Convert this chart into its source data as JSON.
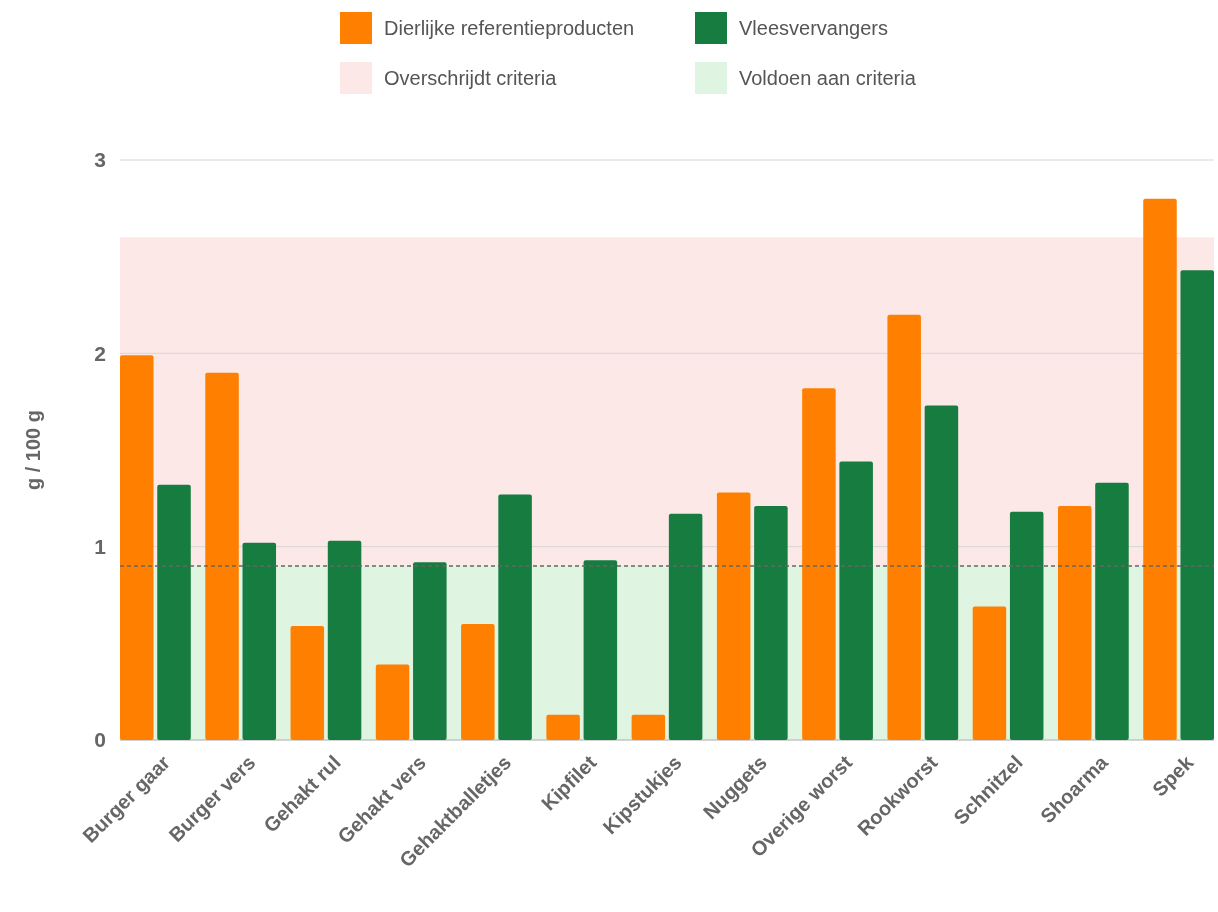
{
  "chart_data": {
    "type": "bar",
    "ylabel": "g / 100 g",
    "categories": [
      "Burger gaar",
      "Burger vers",
      "Gehakt rul",
      "Gehakt vers",
      "Gehaktballetjes",
      "Kipfilet",
      "Kipstukjes",
      "Nuggets",
      "Overige worst",
      "Rookworst",
      "Schnitzel",
      "Shoarma",
      "Spek"
    ],
    "series": [
      {
        "name": "Dierlijke referentieproducten",
        "color": "#ff8000",
        "values": [
          1.99,
          1.9,
          0.59,
          0.39,
          0.6,
          0.13,
          0.13,
          1.28,
          1.82,
          2.2,
          0.69,
          1.21,
          2.8
        ]
      },
      {
        "name": "Vleesvervangers",
        "color": "#167c3f",
        "values": [
          1.32,
          1.02,
          1.03,
          0.92,
          1.27,
          0.93,
          1.17,
          1.21,
          1.44,
          1.73,
          1.18,
          1.33,
          2.43
        ]
      }
    ],
    "ylim": [
      0,
      3
    ],
    "yticks": [
      0,
      1,
      2,
      3
    ],
    "grid": "y",
    "legend": "top",
    "bands": [
      {
        "axis": "y",
        "from": 0.9,
        "to": 2.6,
        "label": "Overschrijdt criteria",
        "color": "#fde8e8"
      },
      {
        "axis": "y",
        "from": 0,
        "to": 0.9,
        "label": "Voldoen aan criteria",
        "color": "#dff5e1"
      }
    ],
    "ref_lines": [
      {
        "axis": "y",
        "value": 0.9,
        "color": "#666666",
        "line_style": "dashed"
      }
    ]
  }
}
